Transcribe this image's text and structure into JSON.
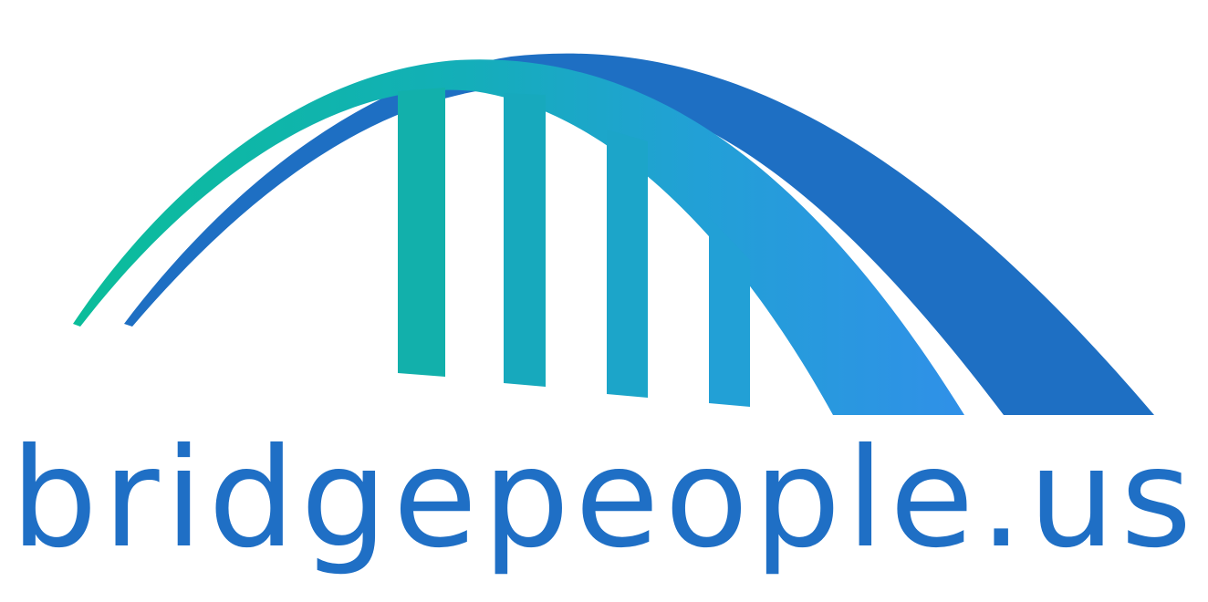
{
  "brand": {
    "name": "bridgepeople.us"
  },
  "logo": {
    "icon": "bridge-arch-icon",
    "colors": {
      "teal": "#10b6a0",
      "cyan": "#1ea3cc",
      "light_blue": "#2f93e6",
      "blue": "#1e6fc3",
      "text": "#1f6fc5"
    }
  }
}
